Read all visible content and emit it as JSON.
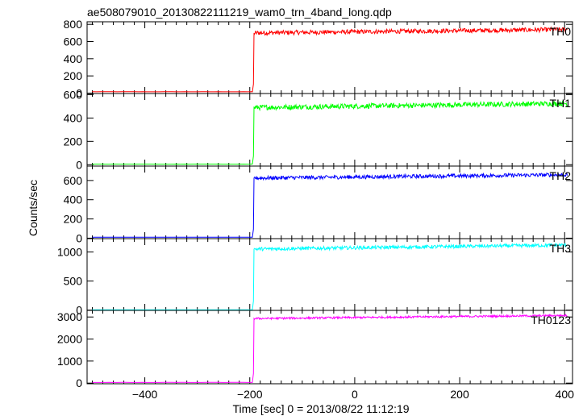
{
  "chart_data": {
    "type": "line",
    "title": "ae508079010_20130822111219_wam0_trn_4band_long.qdp",
    "xlabel": "Time [sec] 0 = 2013/08/22 11:12:19",
    "ylabel": "Counts/sec",
    "xlim": [
      -510,
      415
    ],
    "x_ticks": [
      -400,
      -200,
      0,
      200,
      400
    ],
    "grid": false,
    "step_time": -195,
    "panels": [
      {
        "name": "TH0",
        "color": "#ff0000",
        "ylim": [
          -5,
          830
        ],
        "y_ticks": [
          0,
          200,
          400,
          600,
          800
        ],
        "pre_level": 15,
        "post_start": 700,
        "post_end": 740,
        "noise": 26
      },
      {
        "name": "TH1",
        "color": "#00ff00",
        "ylim": [
          -12,
          610
        ],
        "y_ticks": [
          0,
          200,
          400,
          600
        ],
        "pre_level": 5,
        "post_start": 490,
        "post_end": 525,
        "noise": 22
      },
      {
        "name": "TH2",
        "color": "#0000ff",
        "ylim": [
          -5,
          750
        ],
        "y_ticks": [
          0,
          200,
          400,
          600
        ],
        "pre_level": 10,
        "post_start": 625,
        "post_end": 660,
        "noise": 20
      },
      {
        "name": "TH3",
        "color": "#00ffff",
        "ylim": [
          -5,
          1230
        ],
        "y_ticks": [
          0,
          500,
          1000
        ],
        "pre_level": 5,
        "post_start": 1050,
        "post_end": 1120,
        "noise": 30
      },
      {
        "name": "TH0123",
        "color": "#ff00ff",
        "ylim": [
          -30,
          3300
        ],
        "y_ticks": [
          0,
          1000,
          2000,
          3000
        ],
        "pre_level": 30,
        "post_start": 2930,
        "post_end": 3070,
        "noise": 45
      }
    ]
  }
}
